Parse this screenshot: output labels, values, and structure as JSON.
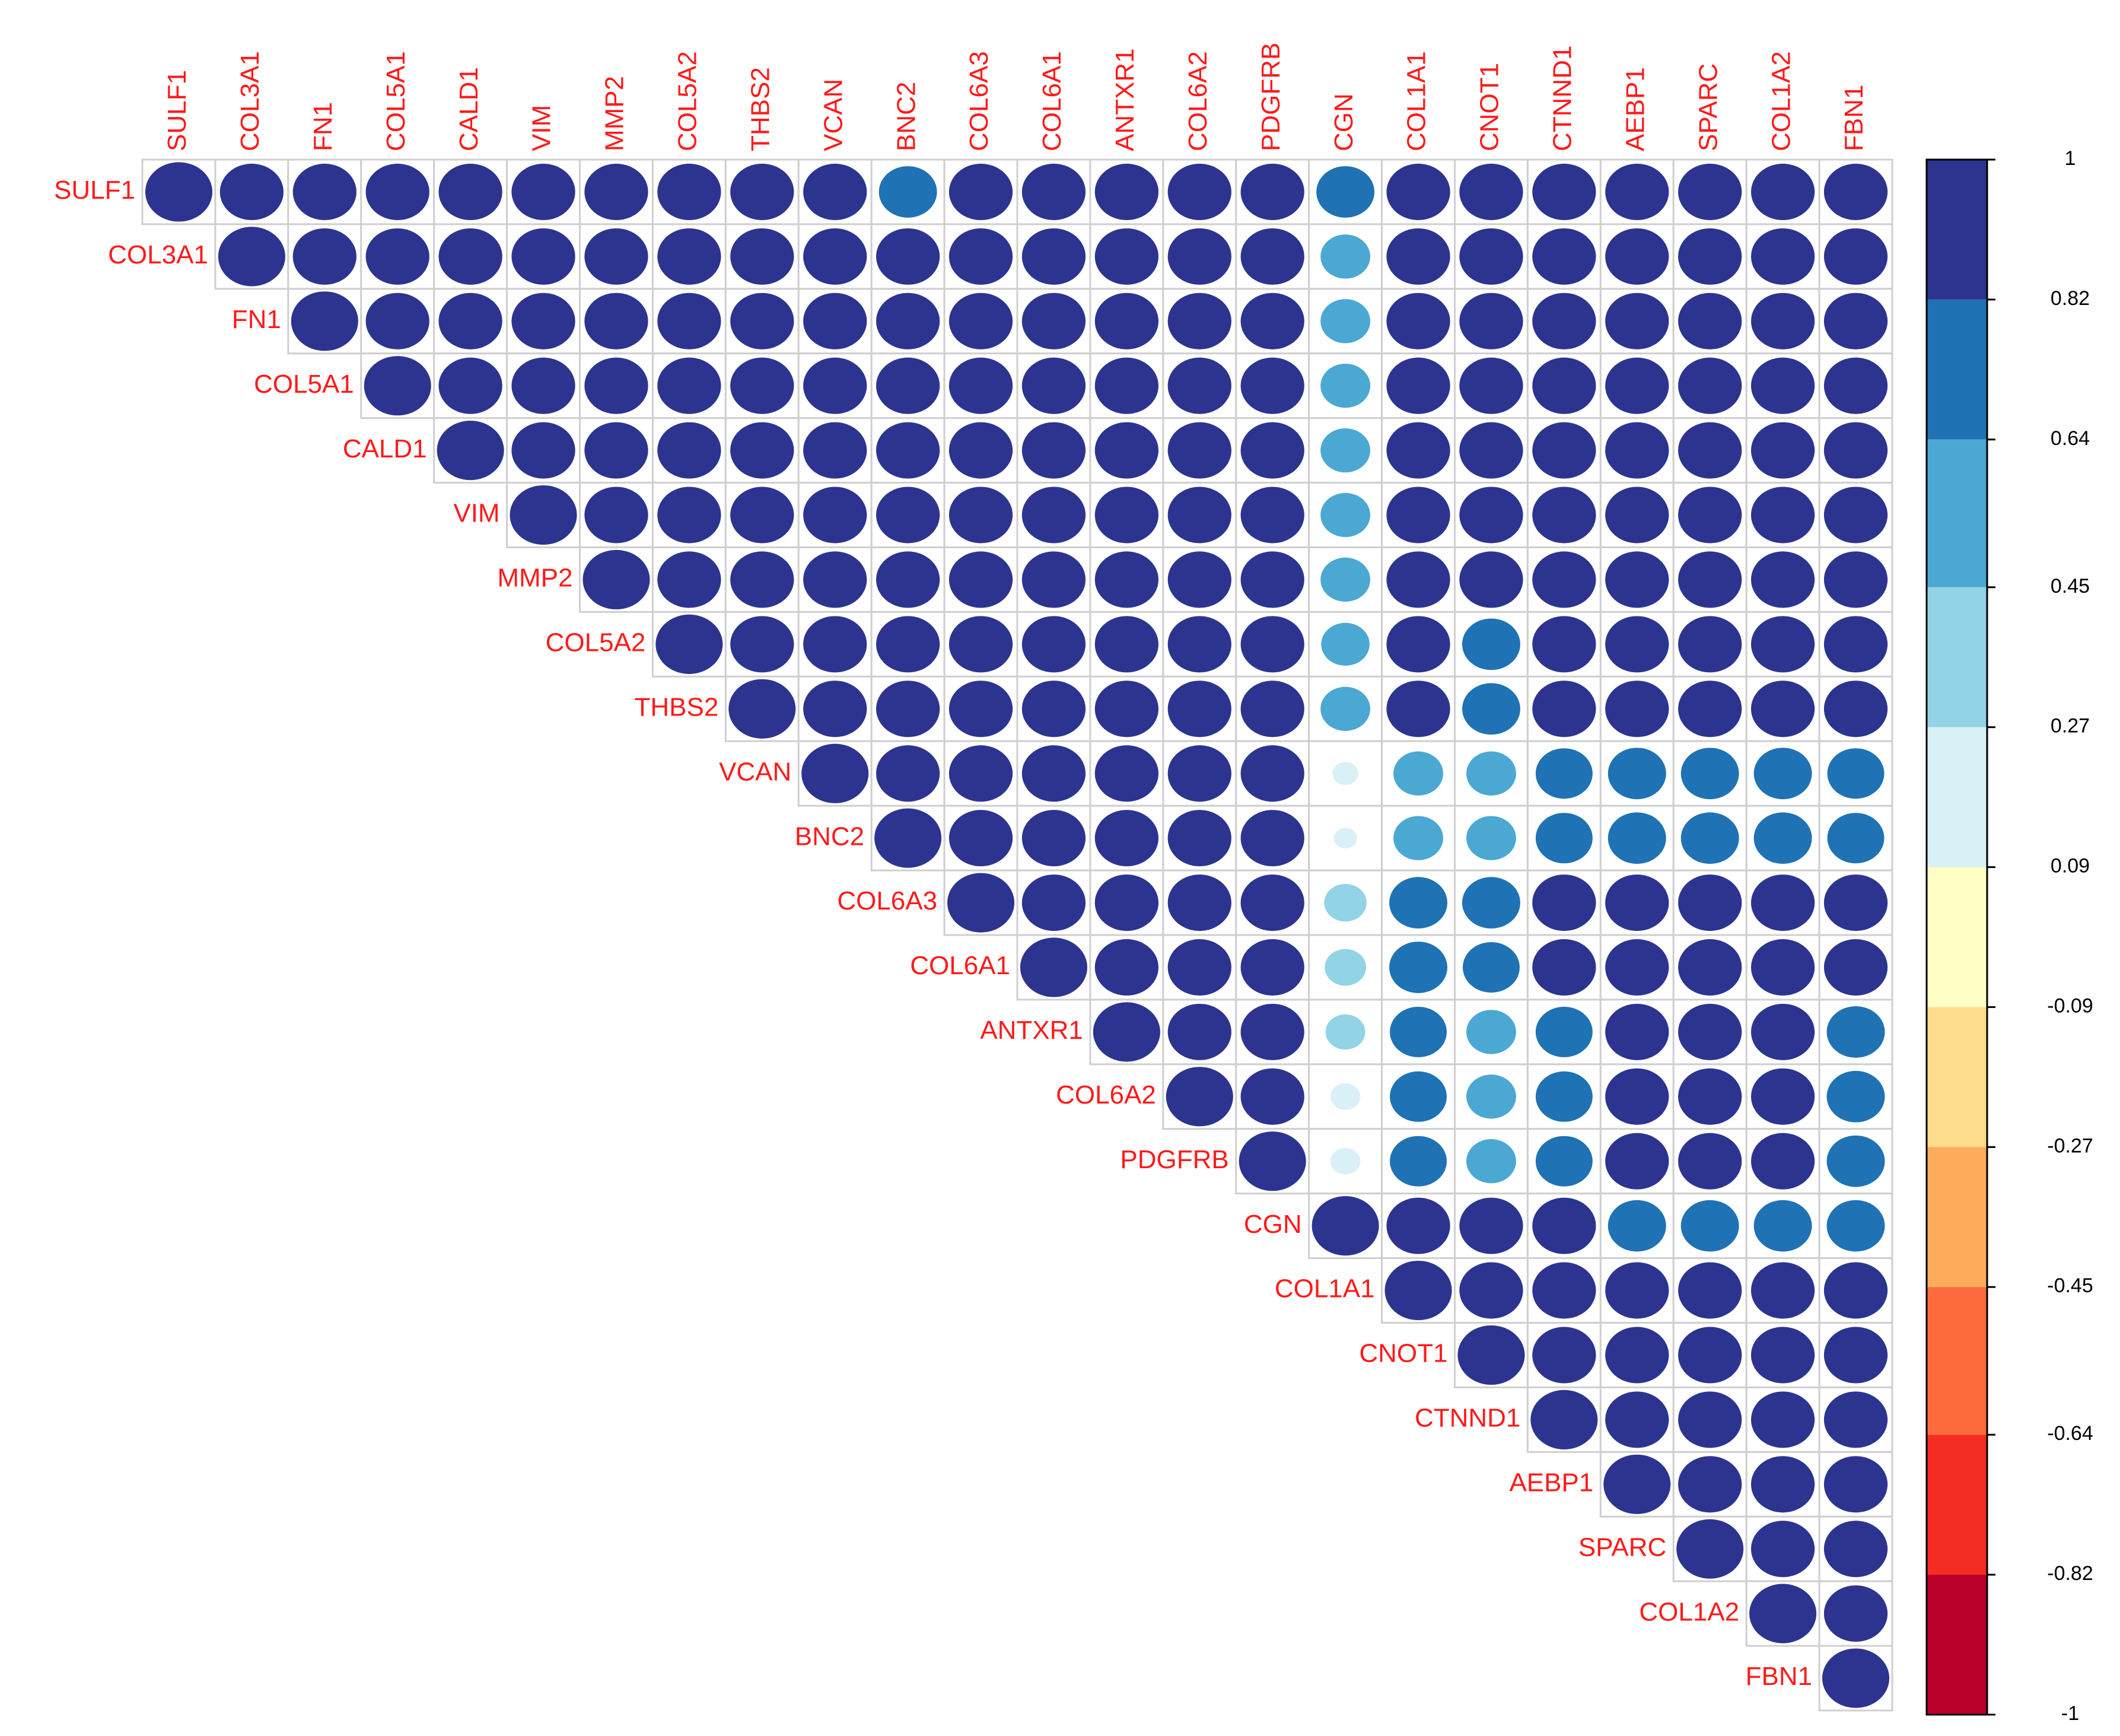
{
  "chart_data": {
    "type": "corrplot",
    "labels": [
      "SULF1",
      "COL3A1",
      "FN1",
      "COL5A1",
      "CALD1",
      "VIM",
      "MMP2",
      "COL5A2",
      "THBS2",
      "VCAN",
      "BNC2",
      "COL6A3",
      "COL6A1",
      "ANTXR1",
      "COL6A2",
      "PDGFRB",
      "CGN",
      "COL1A1",
      "CNOT1",
      "CTNND1",
      "AEBP1",
      "SPARC",
      "COL1A2",
      "FBN1"
    ],
    "matrix": [
      [
        1,
        0.9,
        0.9,
        0.9,
        0.9,
        0.9,
        0.9,
        0.9,
        0.9,
        0.9,
        0.75,
        0.9,
        0.9,
        0.9,
        0.9,
        0.9,
        0.75,
        0.9,
        0.9,
        0.9,
        0.9,
        0.9,
        0.9,
        0.9
      ],
      [
        null,
        1,
        0.9,
        0.9,
        0.9,
        0.9,
        0.9,
        0.9,
        0.9,
        0.9,
        0.9,
        0.9,
        0.9,
        0.9,
        0.9,
        0.9,
        0.55,
        0.9,
        0.9,
        0.9,
        0.9,
        0.9,
        0.9,
        0.9
      ],
      [
        null,
        null,
        1,
        0.9,
        0.9,
        0.9,
        0.9,
        0.9,
        0.9,
        0.9,
        0.9,
        0.9,
        0.9,
        0.9,
        0.9,
        0.9,
        0.55,
        0.9,
        0.9,
        0.9,
        0.9,
        0.9,
        0.9,
        0.9
      ],
      [
        null,
        null,
        null,
        1,
        0.9,
        0.9,
        0.9,
        0.9,
        0.9,
        0.9,
        0.9,
        0.9,
        0.9,
        0.9,
        0.9,
        0.9,
        0.55,
        0.9,
        0.9,
        0.9,
        0.9,
        0.9,
        0.9,
        0.9
      ],
      [
        null,
        null,
        null,
        null,
        1,
        0.9,
        0.9,
        0.9,
        0.9,
        0.9,
        0.9,
        0.9,
        0.9,
        0.9,
        0.9,
        0.9,
        0.55,
        0.9,
        0.9,
        0.9,
        0.9,
        0.9,
        0.9,
        0.9
      ],
      [
        null,
        null,
        null,
        null,
        null,
        1,
        0.9,
        0.9,
        0.9,
        0.9,
        0.9,
        0.9,
        0.9,
        0.9,
        0.9,
        0.9,
        0.55,
        0.9,
        0.9,
        0.9,
        0.9,
        0.9,
        0.9,
        0.9
      ],
      [
        null,
        null,
        null,
        null,
        null,
        null,
        1,
        0.9,
        0.9,
        0.9,
        0.9,
        0.9,
        0.9,
        0.9,
        0.9,
        0.9,
        0.55,
        0.9,
        0.9,
        0.9,
        0.9,
        0.9,
        0.9,
        0.9
      ],
      [
        null,
        null,
        null,
        null,
        null,
        null,
        null,
        1,
        0.9,
        0.9,
        0.9,
        0.9,
        0.9,
        0.9,
        0.9,
        0.9,
        0.52,
        0.9,
        0.75,
        0.9,
        0.9,
        0.9,
        0.9,
        0.9
      ],
      [
        null,
        null,
        null,
        null,
        null,
        null,
        null,
        null,
        1,
        0.9,
        0.9,
        0.9,
        0.9,
        0.9,
        0.9,
        0.9,
        0.55,
        0.9,
        0.75,
        0.9,
        0.9,
        0.9,
        0.9,
        0.9
      ],
      [
        null,
        null,
        null,
        null,
        null,
        null,
        null,
        null,
        null,
        1,
        0.9,
        0.9,
        0.9,
        0.9,
        0.9,
        0.9,
        0.15,
        0.55,
        0.55,
        0.72,
        0.75,
        0.75,
        0.75,
        0.72
      ],
      [
        null,
        null,
        null,
        null,
        null,
        null,
        null,
        null,
        null,
        null,
        1,
        0.9,
        0.9,
        0.9,
        0.9,
        0.9,
        0.12,
        0.55,
        0.55,
        0.72,
        0.75,
        0.75,
        0.75,
        0.72
      ],
      [
        null,
        null,
        null,
        null,
        null,
        null,
        null,
        null,
        null,
        null,
        null,
        1,
        0.9,
        0.9,
        0.9,
        0.9,
        0.4,
        0.75,
        0.75,
        0.9,
        0.9,
        0.9,
        0.9,
        0.9
      ],
      [
        null,
        null,
        null,
        null,
        null,
        null,
        null,
        null,
        null,
        null,
        null,
        null,
        1,
        0.9,
        0.9,
        0.9,
        0.38,
        0.75,
        0.72,
        0.9,
        0.9,
        0.9,
        0.9,
        0.9
      ],
      [
        null,
        null,
        null,
        null,
        null,
        null,
        null,
        null,
        null,
        null,
        null,
        null,
        null,
        1,
        0.9,
        0.9,
        0.35,
        0.72,
        0.55,
        0.72,
        0.9,
        0.9,
        0.9,
        0.75
      ],
      [
        null,
        null,
        null,
        null,
        null,
        null,
        null,
        null,
        null,
        null,
        null,
        null,
        null,
        null,
        1,
        0.9,
        0.2,
        0.72,
        0.55,
        0.72,
        0.9,
        0.9,
        0.9,
        0.75
      ],
      [
        null,
        null,
        null,
        null,
        null,
        null,
        null,
        null,
        null,
        null,
        null,
        null,
        null,
        null,
        null,
        1,
        0.2,
        0.72,
        0.55,
        0.72,
        0.9,
        0.9,
        0.9,
        0.75
      ],
      [
        null,
        null,
        null,
        null,
        null,
        null,
        null,
        null,
        null,
        null,
        null,
        null,
        null,
        null,
        null,
        null,
        1,
        0.9,
        0.9,
        0.9,
        0.75,
        0.75,
        0.75,
        0.75
      ],
      [
        null,
        null,
        null,
        null,
        null,
        null,
        null,
        null,
        null,
        null,
        null,
        null,
        null,
        null,
        null,
        null,
        null,
        1,
        0.9,
        0.9,
        0.9,
        0.9,
        0.9,
        0.9
      ],
      [
        null,
        null,
        null,
        null,
        null,
        null,
        null,
        null,
        null,
        null,
        null,
        null,
        null,
        null,
        null,
        null,
        null,
        null,
        1,
        0.9,
        0.9,
        0.9,
        0.9,
        0.9
      ],
      [
        null,
        null,
        null,
        null,
        null,
        null,
        null,
        null,
        null,
        null,
        null,
        null,
        null,
        null,
        null,
        null,
        null,
        null,
        null,
        1,
        0.9,
        0.9,
        0.9,
        0.9
      ],
      [
        null,
        null,
        null,
        null,
        null,
        null,
        null,
        null,
        null,
        null,
        null,
        null,
        null,
        null,
        null,
        null,
        null,
        null,
        null,
        null,
        1,
        0.9,
        0.9,
        0.9
      ],
      [
        null,
        null,
        null,
        null,
        null,
        null,
        null,
        null,
        null,
        null,
        null,
        null,
        null,
        null,
        null,
        null,
        null,
        null,
        null,
        null,
        null,
        1,
        0.9,
        0.9
      ],
      [
        null,
        null,
        null,
        null,
        null,
        null,
        null,
        null,
        null,
        null,
        null,
        null,
        null,
        null,
        null,
        null,
        null,
        null,
        null,
        null,
        null,
        null,
        1,
        0.9
      ],
      [
        null,
        null,
        null,
        null,
        null,
        null,
        null,
        null,
        null,
        null,
        null,
        null,
        null,
        null,
        null,
        null,
        null,
        null,
        null,
        null,
        null,
        null,
        null,
        1
      ]
    ],
    "colorbar_ticks": [
      1,
      0.82,
      0.64,
      0.45,
      0.27,
      0.09,
      -0.09,
      -0.27,
      -0.45,
      -0.64,
      -0.82,
      -1
    ],
    "colorbar_colors": [
      "#2c3490",
      "#1f72b4",
      "#4ba8d2",
      "#92d3e6",
      "#d9f0f6",
      "#fffec4",
      "#fedd8c",
      "#feab5c",
      "#fd6b3c",
      "#f42d22",
      "#b8002a"
    ]
  }
}
